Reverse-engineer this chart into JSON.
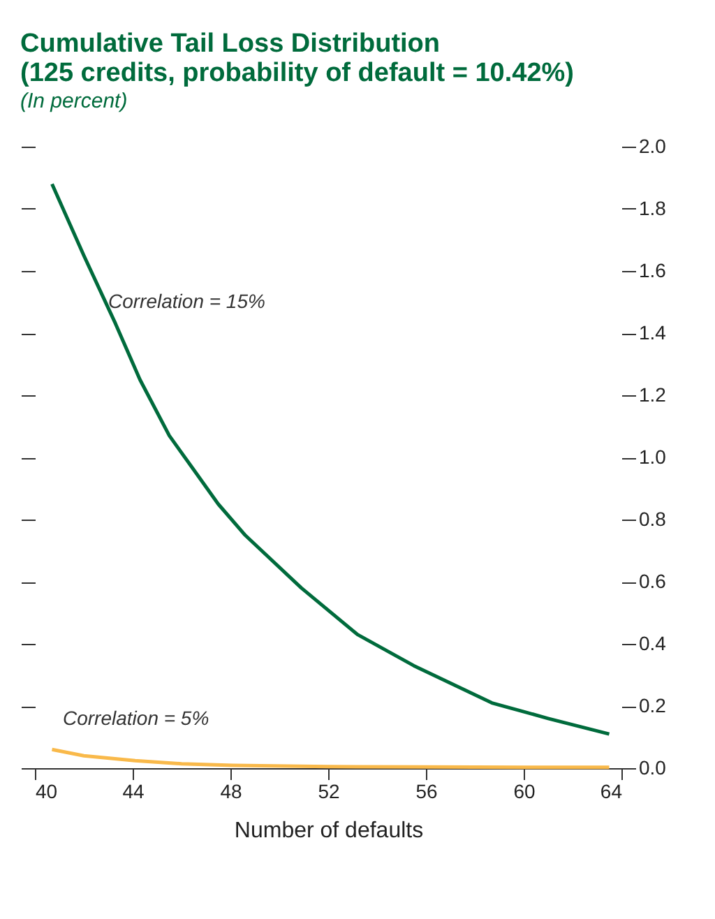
{
  "chart_data": {
    "type": "line",
    "title": [
      "Cumulative Tail Loss Distribution",
      "(125 credits, probability of default = 10.42%)"
    ],
    "subtitle": "(In percent)",
    "xlabel": "Number of defaults",
    "series": [
      {
        "color": "#006b3c",
        "x": [
          40.7,
          42.0,
          43.3,
          44.3,
          45.5,
          46.5,
          47.5,
          48.6,
          50.9,
          53.2,
          55.5,
          58.7,
          61.0,
          63.5
        ],
        "values": [
          1.88,
          1.65,
          1.43,
          1.25,
          1.07,
          0.96,
          0.85,
          0.75,
          0.58,
          0.43,
          0.33,
          0.21,
          0.16,
          0.11
        ]
      },
      {
        "color": "#f9b94a",
        "x": [
          40.7,
          42.0,
          44.1,
          46.0,
          48.1,
          52.0,
          56.0,
          60.0,
          63.5
        ],
        "values": [
          0.06,
          0.04,
          0.024,
          0.014,
          0.009,
          0.005,
          0.004,
          0.003,
          0.003
        ]
      }
    ],
    "annotations": [
      {
        "text": "Correlation = 15%",
        "x": 43.0,
        "y": 1.5
      },
      "Correlation = 5%"
    ],
    "xlim": [
      40,
      64
    ],
    "xticks": [
      40,
      44,
      48,
      52,
      56,
      60,
      64
    ],
    "ylim": [
      0,
      2.0
    ],
    "yticks": [
      {
        "value": 0,
        "label": "0.0"
      },
      0.2,
      0.4,
      0.6,
      0.8,
      {
        "value": 1,
        "label": "1.0"
      },
      1.2,
      1.4,
      1.6,
      1.8,
      {
        "value": 2,
        "label": "2.0"
      }
    ],
    "grid": false
  }
}
